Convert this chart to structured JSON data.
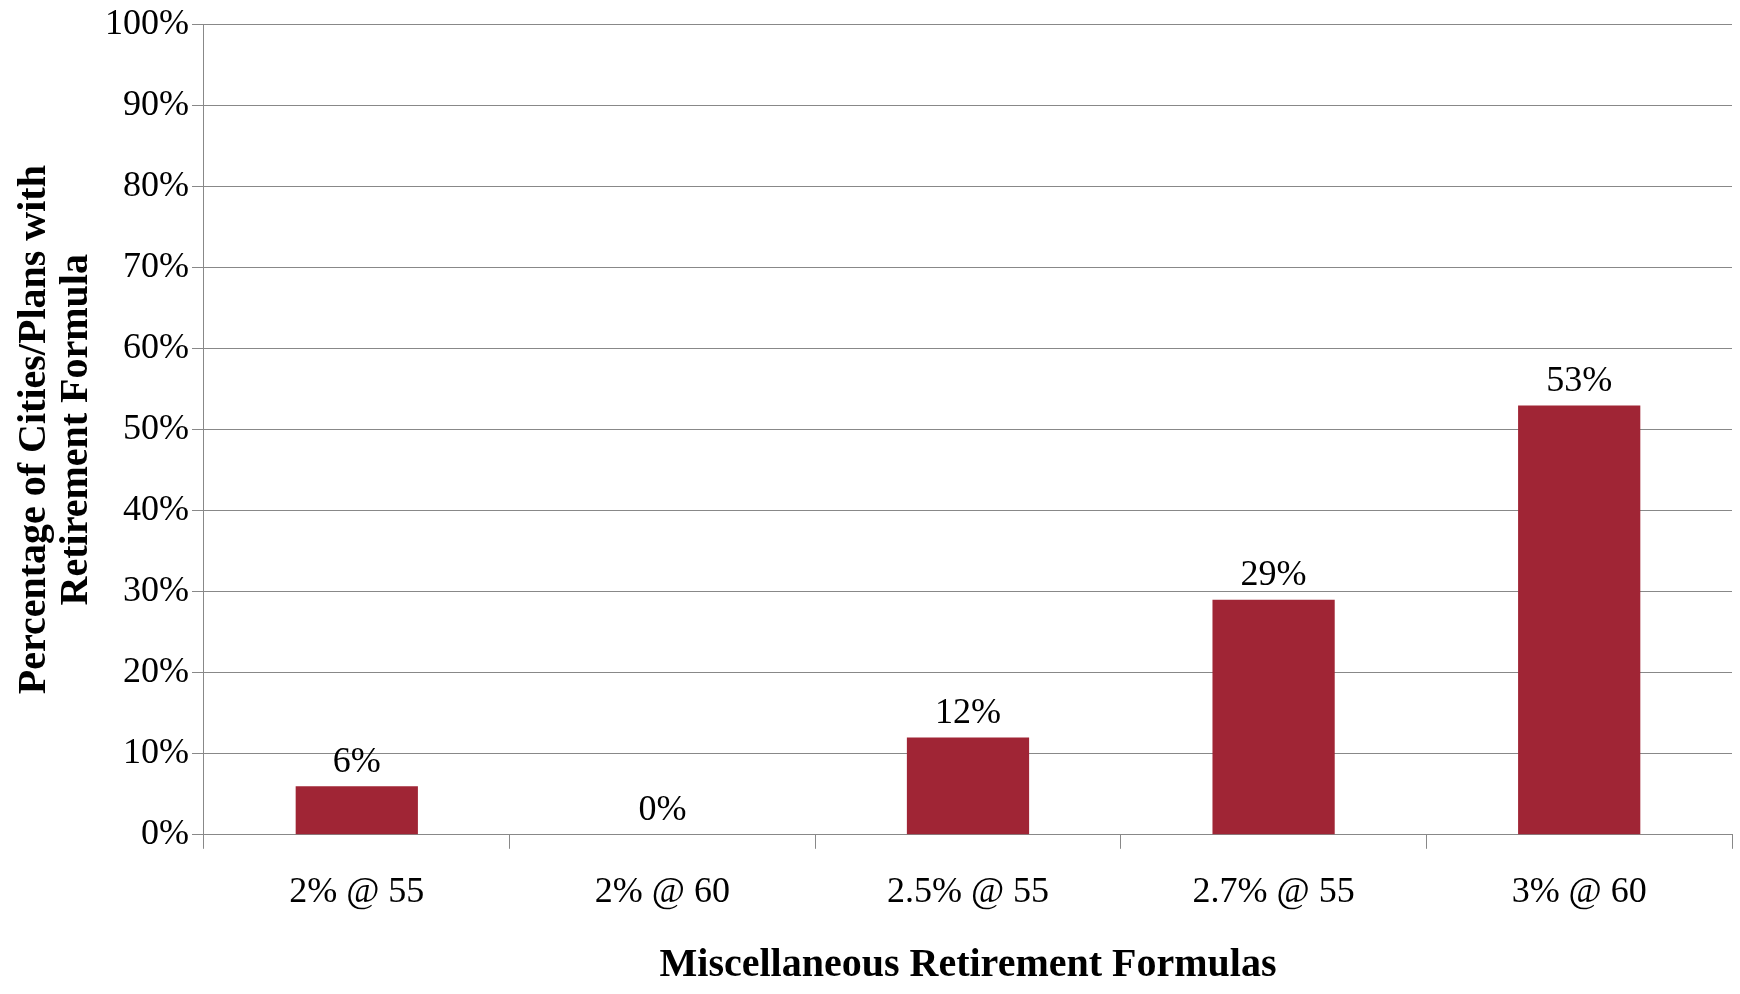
{
  "chart_data": {
    "type": "bar",
    "xlabel": "Miscellaneous Retirement Formulas",
    "ylabel": "Percentage of Cities/Plans with Retirement Formula",
    "categories": [
      "2% @ 55",
      "2% @ 60",
      "2.5% @ 55",
      "2.7% @ 55",
      "3% @ 60"
    ],
    "values": [
      6,
      0,
      12,
      29,
      53
    ],
    "value_labels": [
      "6%",
      "0%",
      "12%",
      "29%",
      "53%"
    ],
    "color": "#a02535",
    "ylim": [
      0,
      100
    ],
    "yticks": [
      {
        "value": 0,
        "label": "0%"
      },
      {
        "value": 10,
        "label": "10%"
      },
      {
        "value": 20,
        "label": "20%"
      },
      {
        "value": 30,
        "label": "30%"
      },
      {
        "value": 40,
        "label": "40%"
      },
      {
        "value": 50,
        "label": "50%"
      },
      {
        "value": 60,
        "label": "60%"
      },
      {
        "value": 70,
        "label": "70%"
      },
      {
        "value": 80,
        "label": "80%"
      },
      {
        "value": 90,
        "label": "90%"
      },
      {
        "value": 100,
        "label": "100%"
      }
    ],
    "grid": "y",
    "legend": false
  }
}
